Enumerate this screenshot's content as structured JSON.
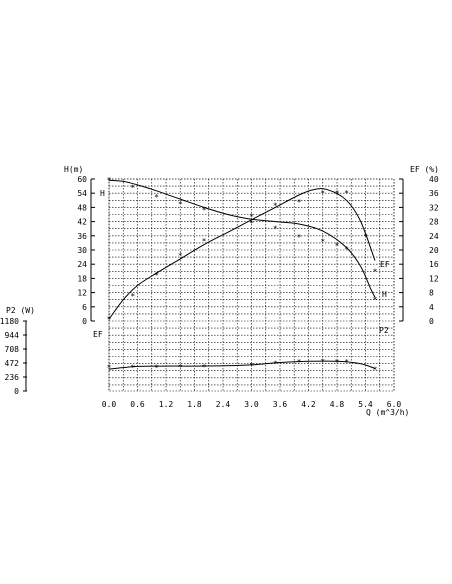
{
  "chart_data": {
    "type": "line",
    "x_axis": {
      "label": "Q (m^3/h)",
      "ticks": [
        "0.0",
        "0.6",
        "1.2",
        "1.8",
        "2.4",
        "3.0",
        "3.6",
        "4.2",
        "4.8",
        "5.4",
        "6.0"
      ],
      "range": [
        0,
        6
      ]
    },
    "y_axes": {
      "head": {
        "label": "H(m)",
        "ticks": [
          "0",
          "6",
          "12",
          "18",
          "24",
          "30",
          "36",
          "42",
          "48",
          "54",
          "60"
        ],
        "range": [
          0,
          60
        ]
      },
      "efficiency": {
        "label": "EF (%)",
        "ticks": [
          "0",
          "4",
          "8",
          "12",
          "16",
          "20",
          "24",
          "28",
          "32",
          "36",
          "40"
        ],
        "range": [
          0,
          40
        ]
      },
      "power": {
        "label": "P2 (W)",
        "ticks": [
          "0",
          "236",
          "472",
          "708",
          "944",
          "1180"
        ],
        "range": [
          0,
          1180
        ]
      }
    },
    "series": [
      {
        "name": "H",
        "axis": "head",
        "curve": [
          [
            0,
            59.5
          ],
          [
            0.3,
            59
          ],
          [
            0.6,
            57.5
          ],
          [
            1.0,
            55
          ],
          [
            1.5,
            51.5
          ],
          [
            2.0,
            48
          ],
          [
            2.5,
            45
          ],
          [
            3.0,
            43
          ],
          [
            3.5,
            42
          ],
          [
            4.0,
            41
          ],
          [
            4.5,
            38
          ],
          [
            5.0,
            31
          ],
          [
            5.3,
            23
          ],
          [
            5.5,
            14
          ],
          [
            5.6,
            10
          ]
        ],
        "points": [
          [
            0,
            59.5
          ],
          [
            0.5,
            56.5
          ],
          [
            1.0,
            52.5
          ],
          [
            1.5,
            49.5
          ],
          [
            2.0,
            47
          ],
          [
            3.0,
            41.5
          ],
          [
            3.5,
            39
          ],
          [
            4.0,
            35.5
          ],
          [
            4.5,
            33.5
          ],
          [
            4.8,
            32
          ],
          [
            5.0,
            30.5
          ],
          [
            5.6,
            9
          ]
        ],
        "end_label": "H",
        "start_label": "H"
      },
      {
        "name": "EF",
        "axis": "efficiency",
        "curve": [
          [
            0,
            0.5
          ],
          [
            0.3,
            6
          ],
          [
            0.6,
            10
          ],
          [
            1.0,
            13.5
          ],
          [
            1.5,
            17.5
          ],
          [
            2.0,
            21.5
          ],
          [
            2.5,
            25
          ],
          [
            3.0,
            28.5
          ],
          [
            3.5,
            32
          ],
          [
            4.0,
            35.5
          ],
          [
            4.3,
            37
          ],
          [
            4.6,
            37
          ],
          [
            5.0,
            34
          ],
          [
            5.3,
            28
          ],
          [
            5.6,
            17
          ]
        ],
        "points": [
          [
            0,
            0.5
          ],
          [
            0.5,
            7
          ],
          [
            1.0,
            13
          ],
          [
            1.5,
            18.5
          ],
          [
            2.0,
            22.5
          ],
          [
            3.0,
            29.5
          ],
          [
            3.5,
            32.5
          ],
          [
            4.0,
            33.5
          ],
          [
            4.5,
            36
          ],
          [
            4.8,
            36
          ],
          [
            5.0,
            36
          ],
          [
            5.4,
            24
          ],
          [
            5.6,
            14
          ]
        ],
        "end_label": "EF",
        "start_label": "EF"
      },
      {
        "name": "P2",
        "axis": "power",
        "curve": [
          [
            0,
            370
          ],
          [
            0.6,
            415
          ],
          [
            1.2,
            420
          ],
          [
            1.8,
            420
          ],
          [
            2.4,
            425
          ],
          [
            3.0,
            440
          ],
          [
            3.6,
            480
          ],
          [
            4.2,
            500
          ],
          [
            4.8,
            500
          ],
          [
            5.3,
            460
          ],
          [
            5.6,
            380
          ]
        ],
        "points": [
          [
            0,
            395
          ],
          [
            0.5,
            400
          ],
          [
            1.0,
            400
          ],
          [
            1.5,
            405
          ],
          [
            2.0,
            405
          ],
          [
            3.0,
            430
          ],
          [
            3.5,
            460
          ],
          [
            4.0,
            490
          ],
          [
            4.5,
            495
          ],
          [
            4.8,
            490
          ],
          [
            5.0,
            485
          ],
          [
            5.6,
            360
          ]
        ],
        "end_label": "P2",
        "start_label": ""
      }
    ],
    "grid": true,
    "legend": "none"
  }
}
